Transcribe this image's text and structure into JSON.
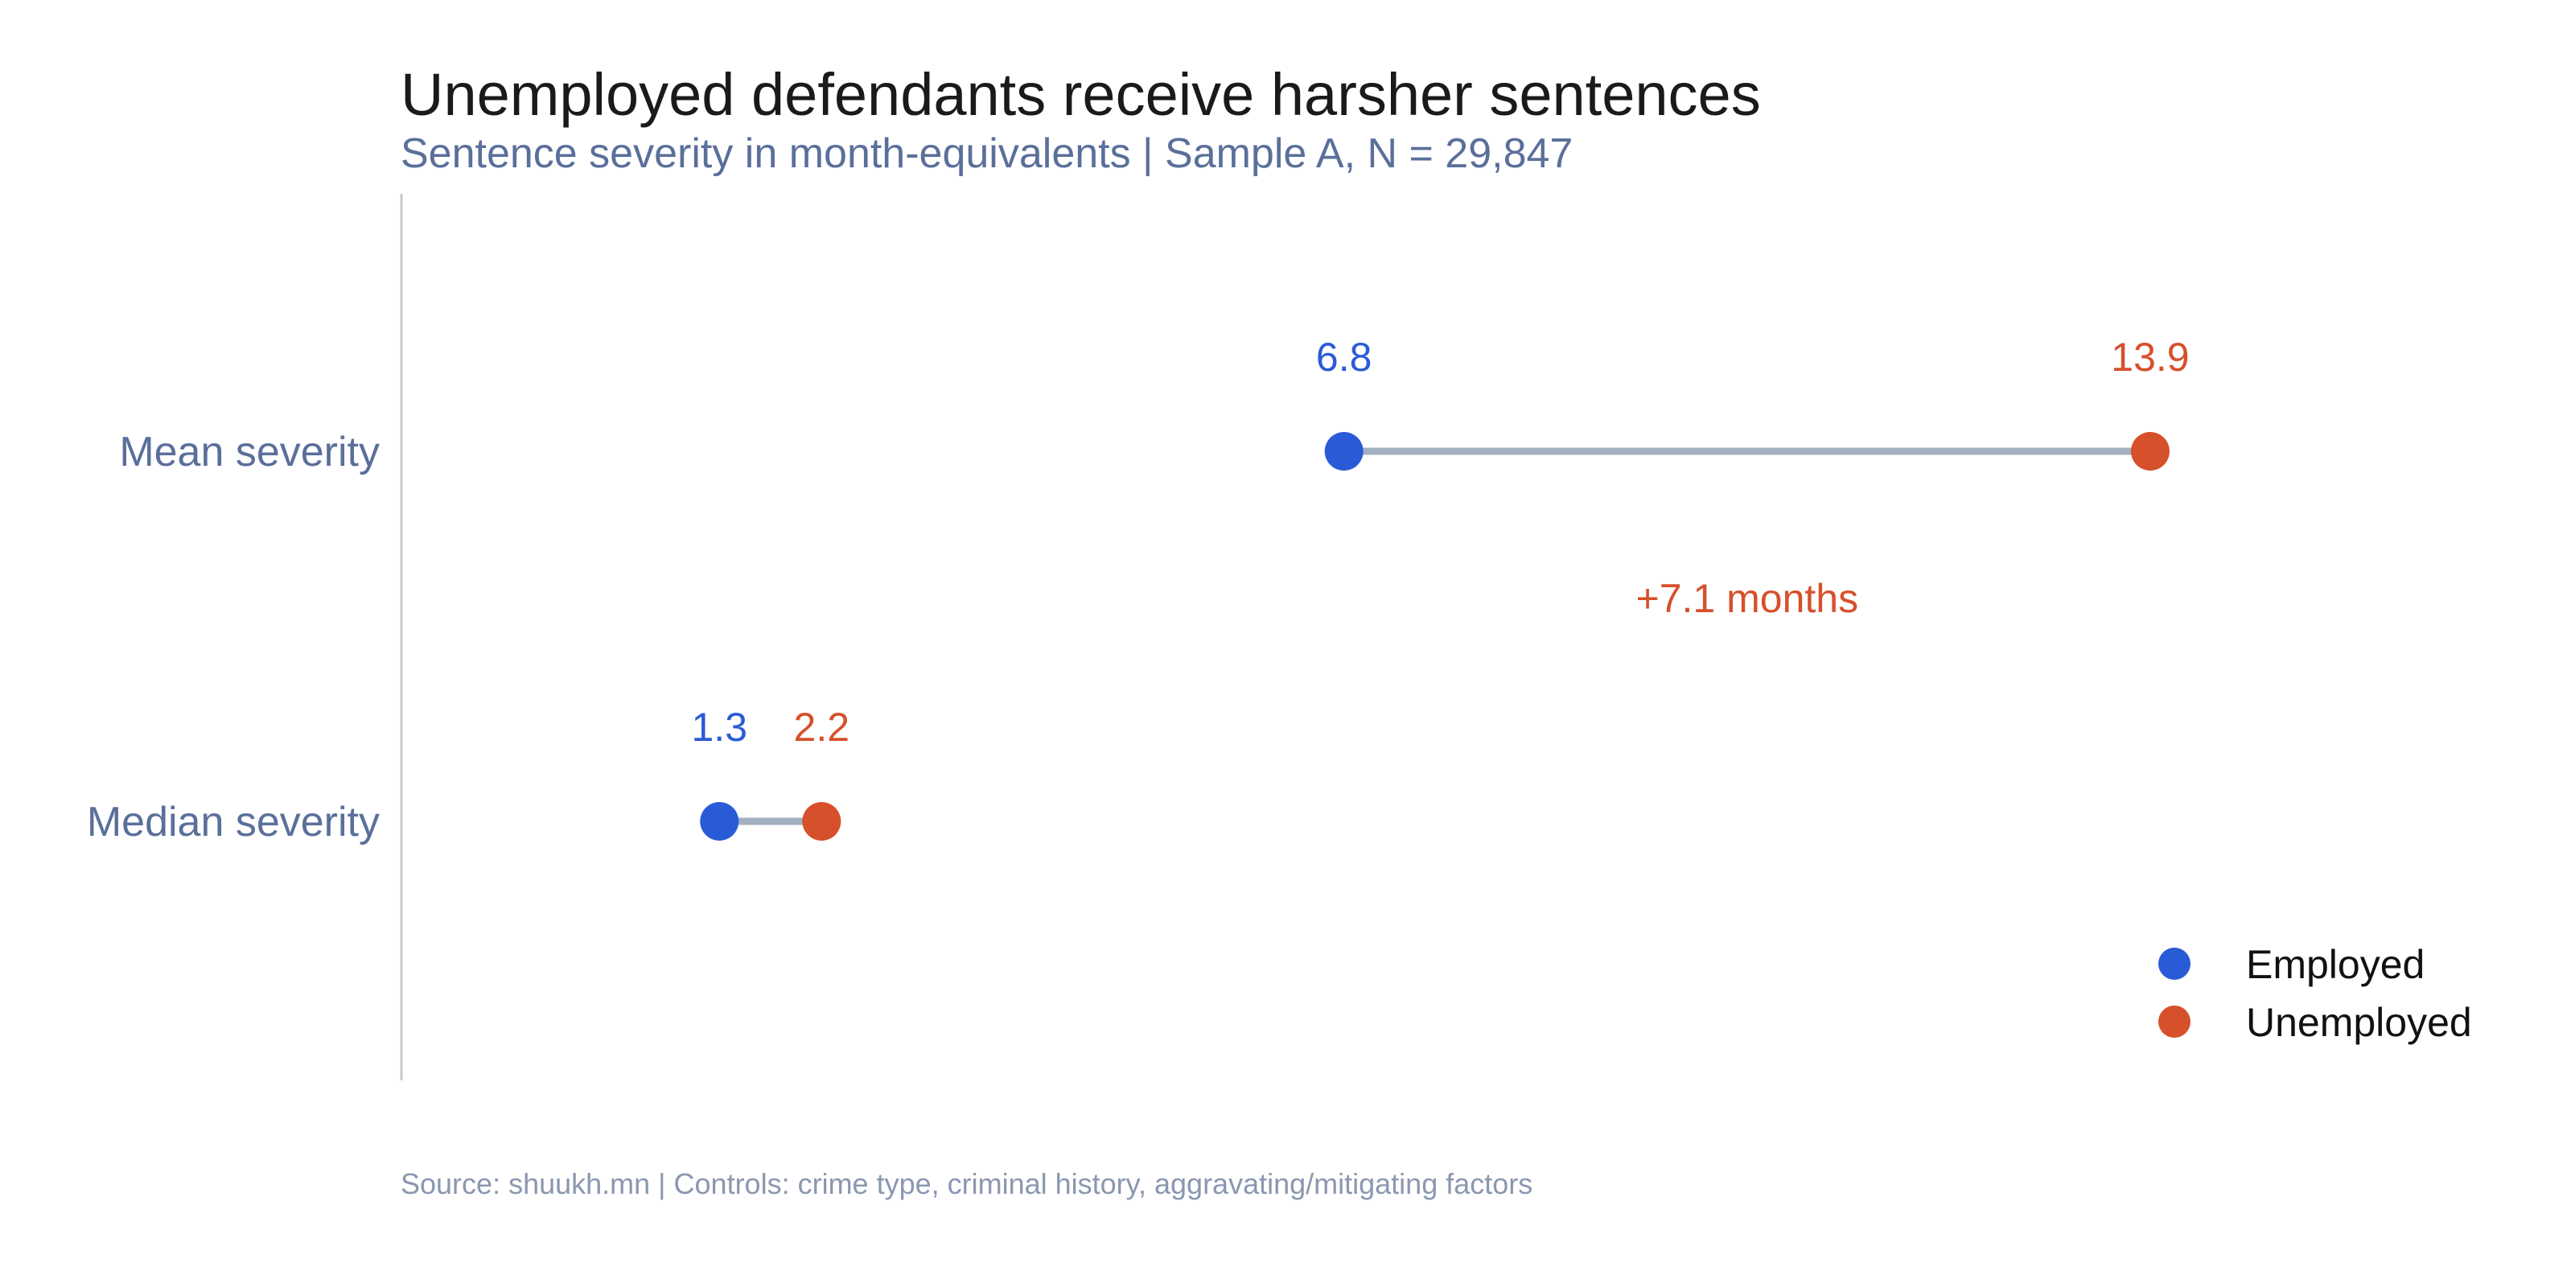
{
  "chart_data": {
    "type": "dumbbell",
    "title": "Unemployed defendants receive harsher sentences",
    "subtitle": "Sentence severity in month-equivalents | Sample A, N = 29,847",
    "source": "Source: shuukh.mn | Controls: crime type, criminal history, aggravating/mitigating factors",
    "categories": [
      "Mean severity",
      "Median severity"
    ],
    "series": [
      {
        "name": "Employed",
        "color": "#2a5bd7",
        "values": [
          6.8,
          1.3
        ]
      },
      {
        "name": "Unemployed",
        "color": "#d6502b",
        "values": [
          13.9,
          2.2
        ]
      }
    ],
    "value_labels": {
      "employed": [
        "6.8",
        "1.3"
      ],
      "unemployed": [
        "13.9",
        "2.2"
      ]
    },
    "annotation": {
      "text": "+7.1 months",
      "category": "Mean severity",
      "color": "#d6502b"
    },
    "connector_color": "#a3b0c2",
    "axis_color": "#c8c8c8",
    "xlim": [
      -1.5,
      16.5
    ],
    "grid": false,
    "legend_position": "bottom-right"
  }
}
